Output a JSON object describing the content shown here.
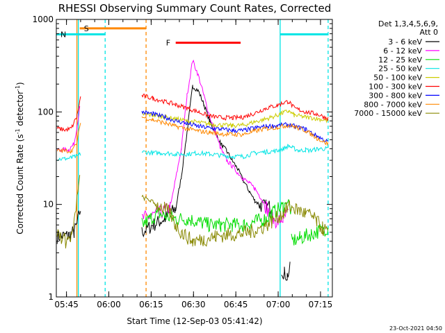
{
  "chart_data": {
    "type": "line",
    "title": "RHESSI Observing Summary Count Rates, Corrected",
    "xlabel": "Start Time (12-Sep-03 05:41:42)",
    "ylabel_main": "Corrected Count Rate (s",
    "ylabel_sup1": "-1",
    "ylabel_mid": " detector",
    "ylabel_sup2": "-1",
    "ylabel_end": ")",
    "yscale": "log",
    "ylim": [
      1,
      1000
    ],
    "xlim_min": [
      -0.3,
      97.5
    ],
    "xtick_values": [
      3.3,
      18.3,
      33.3,
      48.3,
      63.3,
      78.3,
      93.3
    ],
    "xtick_labels": [
      "05:45",
      "06:00",
      "06:15",
      "06:30",
      "06:45",
      "07:00",
      "07:15"
    ],
    "ytick_values": [
      1,
      10,
      100,
      1000
    ],
    "ytick_labels": [
      "1",
      "10",
      "100",
      "1000"
    ],
    "legend_header": [
      "Det 1,3,4,5,6,9,",
      "Att 0"
    ],
    "legend_placement": "right",
    "series": [
      {
        "name": "3 - 6 keV",
        "color": "#000000",
        "segments": [
          [
            [
              0,
              4.5
            ],
            [
              4,
              4.6
            ],
            [
              6,
              5
            ],
            [
              7,
              6
            ],
            [
              8.3,
              9
            ]
          ],
          [
            [
              30,
              5
            ],
            [
              34,
              6
            ],
            [
              38,
              7
            ],
            [
              42,
              9
            ],
            [
              44,
              20
            ],
            [
              46,
              60
            ],
            [
              48,
              190
            ],
            [
              50,
              170
            ],
            [
              52,
              120
            ],
            [
              54,
              80
            ],
            [
              56,
              60
            ],
            [
              58,
              45
            ],
            [
              60,
              38
            ],
            [
              62,
              30
            ],
            [
              64,
              24
            ],
            [
              66,
              18
            ],
            [
              68,
              14
            ],
            [
              70,
              11
            ],
            [
              72,
              9.8
            ],
            [
              74,
              9.5
            ],
            [
              76,
              9.4
            ]
          ],
          [
            [
              79.5,
              2
            ],
            [
              80.5,
              1.8
            ],
            [
              81.5,
              1.7
            ],
            [
              82.5,
              2
            ]
          ]
        ]
      },
      {
        "name": "6 - 12 keV",
        "color": "#ff00ff",
        "segments": [
          [
            [
              0,
              39
            ],
            [
              4,
              39
            ],
            [
              6,
              45
            ],
            [
              7,
              70
            ],
            [
              8,
              110
            ]
          ],
          [
            [
              30,
              7
            ],
            [
              36,
              8
            ],
            [
              40,
              9
            ],
            [
              44,
              40
            ],
            [
              46,
              150
            ],
            [
              48,
              360
            ],
            [
              50,
              250
            ],
            [
              52,
              150
            ],
            [
              54,
              90
            ],
            [
              56,
              60
            ],
            [
              58,
              40
            ],
            [
              60,
              30
            ],
            [
              62,
              26
            ],
            [
              64,
              22
            ],
            [
              66,
              19
            ],
            [
              68,
              17
            ],
            [
              70,
              15
            ],
            [
              72,
              12
            ],
            [
              74,
              9.5
            ],
            [
              76,
              7
            ],
            [
              78,
              6.5
            ],
            [
              80,
              7
            ],
            [
              82,
              8
            ]
          ]
        ]
      },
      {
        "name": "12 - 25 keV",
        "color": "#00dd00",
        "segments": [
          [
            [
              30,
              6
            ],
            [
              33,
              7
            ],
            [
              36,
              8
            ],
            [
              38,
              7.5
            ],
            [
              42,
              7
            ],
            [
              46,
              7
            ],
            [
              50,
              6.5
            ],
            [
              54,
              6
            ],
            [
              58,
              6
            ],
            [
              62,
              6
            ],
            [
              66,
              6
            ],
            [
              70,
              6.5
            ],
            [
              74,
              7
            ],
            [
              76,
              8
            ],
            [
              80,
              9.5
            ],
            [
              82,
              11
            ],
            [
              83,
              8
            ]
          ],
          [
            [
              83,
              4
            ],
            [
              86,
              4.3
            ],
            [
              90,
              4.8
            ],
            [
              94,
              5.3
            ],
            [
              96,
              5.6
            ]
          ]
        ]
      },
      {
        "name": "25 - 50 keV",
        "color": "#00e5e5",
        "segments": [
          [
            [
              0,
              31
            ],
            [
              3,
              31
            ],
            [
              5,
              32
            ],
            [
              7,
              33
            ],
            [
              8.3,
              35
            ]
          ],
          [
            [
              30,
              37
            ],
            [
              34,
              36
            ],
            [
              38,
              36
            ],
            [
              42,
              35
            ],
            [
              46,
              35
            ],
            [
              50,
              36
            ],
            [
              54,
              35
            ],
            [
              58,
              34
            ],
            [
              62,
              33
            ],
            [
              66,
              33
            ],
            [
              70,
              36
            ],
            [
              74,
              37
            ],
            [
              78,
              38
            ],
            [
              80,
              40
            ],
            [
              82,
              43
            ],
            [
              84,
              40
            ],
            [
              86,
              38
            ],
            [
              88,
              39
            ],
            [
              90,
              38
            ],
            [
              92,
              40
            ],
            [
              96,
              40
            ]
          ]
        ]
      },
      {
        "name": "50 - 100 keV",
        "color": "#cccc00",
        "segments": [
          [
            [
              30,
              95
            ],
            [
              34,
              92
            ],
            [
              38,
              88
            ],
            [
              42,
              84
            ],
            [
              46,
              80
            ],
            [
              50,
              77
            ],
            [
              54,
              74
            ],
            [
              58,
              72
            ],
            [
              62,
              71
            ],
            [
              66,
              72
            ],
            [
              70,
              78
            ],
            [
              74,
              84
            ],
            [
              78,
              92
            ],
            [
              80,
              98
            ],
            [
              82,
              102
            ],
            [
              84,
              92
            ],
            [
              88,
              88
            ],
            [
              92,
              85
            ],
            [
              96,
              80
            ]
          ]
        ]
      },
      {
        "name": "100 - 300 keV",
        "color": "#ff0000",
        "segments": [
          [
            [
              0,
              66
            ],
            [
              3,
              64
            ],
            [
              5,
              66
            ],
            [
              7,
              90
            ],
            [
              8.3,
              145
            ]
          ],
          [
            [
              30,
              150
            ],
            [
              34,
              140
            ],
            [
              38,
              130
            ],
            [
              42,
              120
            ],
            [
              46,
              110
            ],
            [
              50,
              100
            ],
            [
              54,
              90
            ],
            [
              58,
              87
            ],
            [
              62,
              86
            ],
            [
              66,
              88
            ],
            [
              70,
              97
            ],
            [
              74,
              110
            ],
            [
              78,
              118
            ],
            [
              80,
              125
            ],
            [
              82,
              130
            ],
            [
              84,
              110
            ],
            [
              88,
              100
            ],
            [
              92,
              95
            ],
            [
              96,
              85
            ]
          ]
        ]
      },
      {
        "name": "300 - 800 keV",
        "color": "#0000ff",
        "segments": [
          [
            [
              30,
              100
            ],
            [
              34,
              95
            ],
            [
              38,
              88
            ],
            [
              42,
              80
            ],
            [
              46,
              75
            ],
            [
              50,
              70
            ],
            [
              54,
              67
            ],
            [
              58,
              65
            ],
            [
              62,
              63
            ],
            [
              66,
              63
            ],
            [
              70,
              67
            ],
            [
              74,
              70
            ],
            [
              78,
              71
            ],
            [
              80,
              72
            ],
            [
              82,
              73
            ],
            [
              84,
              70
            ],
            [
              88,
              65
            ],
            [
              92,
              55
            ],
            [
              96,
              47
            ]
          ]
        ]
      },
      {
        "name": "800 - 7000 keV",
        "color": "#ff8800",
        "segments": [
          [
            [
              0,
              38
            ],
            [
              3,
              38
            ],
            [
              5,
              38
            ],
            [
              7,
              45
            ],
            [
              8.3,
              80
            ]
          ],
          [
            [
              30,
              88
            ],
            [
              34,
              82
            ],
            [
              38,
              76
            ],
            [
              42,
              70
            ],
            [
              46,
              66
            ],
            [
              50,
              62
            ],
            [
              54,
              60
            ],
            [
              58,
              58
            ],
            [
              62,
              57
            ],
            [
              66,
              57
            ],
            [
              70,
              62
            ],
            [
              74,
              66
            ],
            [
              78,
              68
            ],
            [
              80,
              70
            ],
            [
              82,
              72
            ],
            [
              84,
              69
            ],
            [
              88,
              63
            ],
            [
              92,
              52
            ],
            [
              96,
              45
            ]
          ]
        ]
      },
      {
        "name": "7000 - 15000 keV",
        "color": "#888800",
        "segments": [
          [
            [
              0,
              5
            ],
            [
              3,
              4
            ],
            [
              5,
              4.5
            ],
            [
              6,
              6
            ],
            [
              7,
              12
            ],
            [
              8,
              20
            ]
          ],
          [
            [
              30,
              12
            ],
            [
              33,
              11
            ],
            [
              35,
              10
            ],
            [
              38,
              9
            ],
            [
              40,
              8
            ],
            [
              42,
              6
            ],
            [
              44,
              5
            ],
            [
              48,
              4
            ],
            [
              52,
              4.2
            ],
            [
              56,
              4.5
            ],
            [
              60,
              4.7
            ],
            [
              64,
              4.8
            ],
            [
              68,
              5
            ],
            [
              72,
              5.5
            ],
            [
              76,
              6.5
            ],
            [
              80,
              8
            ],
            [
              82,
              9.5
            ],
            [
              84,
              9
            ],
            [
              86,
              8.5
            ],
            [
              88,
              8
            ],
            [
              90,
              7.5
            ],
            [
              92,
              6.5
            ],
            [
              94,
              5.5
            ],
            [
              96,
              5
            ]
          ]
        ]
      }
    ],
    "annotations": [
      {
        "label": "S",
        "color": "#ff8800",
        "x_start": 8,
        "x_end": 31.5,
        "y": 800
      },
      {
        "label": "N",
        "color": "#00e5e5",
        "x_start": -0.3,
        "x_end": 17,
        "y": 690
      },
      {
        "label": "F",
        "color": "#ff0000",
        "x_start": 42,
        "x_end": 65,
        "y": 560
      }
    ],
    "period_bars": [
      {
        "color": "#00e5e5",
        "x_start": 79,
        "x_end": 96,
        "y": 690
      }
    ],
    "vertical_markers": [
      {
        "x": 7.0,
        "color": "#ff8800",
        "style": "solid"
      },
      {
        "x": 7.5,
        "color": "#00e5e5",
        "style": "solid"
      },
      {
        "x": 17.0,
        "color": "#00e5e5",
        "style": "dashed"
      },
      {
        "x": 31.5,
        "color": "#ff8800",
        "style": "dashed"
      },
      {
        "x": 79.0,
        "color": "#00e5e5",
        "style": "solid"
      },
      {
        "x": 96.0,
        "color": "#00e5e5",
        "style": "dashed"
      }
    ],
    "timestamp": "23-Oct-2021 04:50"
  }
}
